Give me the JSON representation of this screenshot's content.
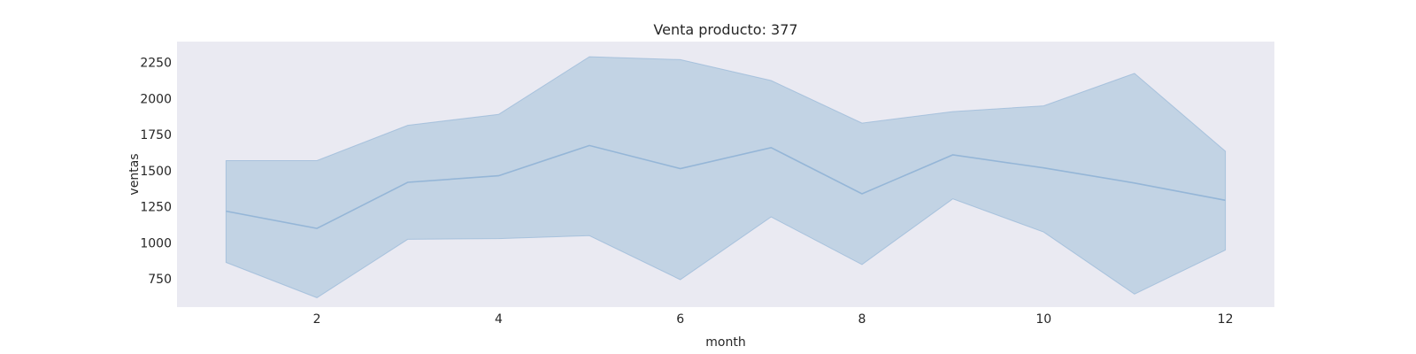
{
  "chart_data": {
    "type": "line",
    "title": "Venta producto: 377",
    "xlabel": "month",
    "ylabel": "ventas",
    "xlim": [
      0.46,
      12.54
    ],
    "ylim": [
      555,
      2395
    ],
    "x_ticks": [
      2,
      4,
      6,
      8,
      10,
      12
    ],
    "y_ticks": [
      750,
      1000,
      1250,
      1500,
      1750,
      2000,
      2250
    ],
    "grid": false,
    "x": [
      1,
      2,
      3,
      4,
      5,
      6,
      7,
      8,
      9,
      10,
      11,
      12
    ],
    "series": [
      {
        "mean": [
          1220,
          1100,
          1420,
          1465,
          1675,
          1515,
          1660,
          1340,
          1610,
          1520,
          1415,
          1295
        ],
        "lower": [
          865,
          620,
          1025,
          1030,
          1050,
          745,
          1180,
          850,
          1305,
          1075,
          645,
          950
        ],
        "upper": [
          1570,
          1570,
          1815,
          1890,
          2290,
          2270,
          2125,
          1830,
          1910,
          1950,
          2175,
          1635
        ]
      }
    ],
    "colors": {
      "plot_bg": "#eaeaf2",
      "line": "#95b6d7",
      "band": "#c2d3e4"
    }
  }
}
